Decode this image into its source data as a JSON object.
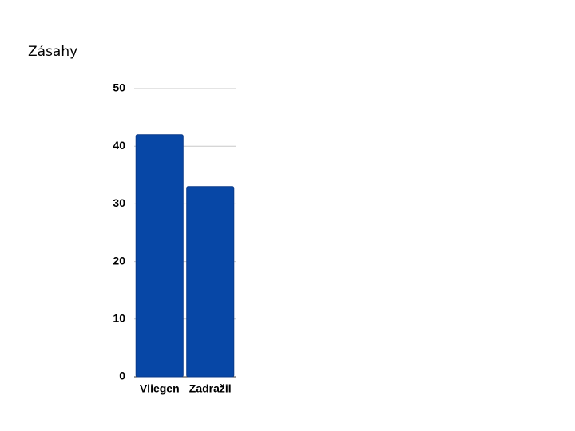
{
  "chart_data": {
    "type": "bar",
    "title": "Zásahy",
    "categories": [
      "Vliegen",
      "Zadražil"
    ],
    "values": [
      42,
      33
    ],
    "color": "#0747a6",
    "ylim": [
      0,
      50
    ],
    "yticks": [
      0,
      10,
      20,
      30,
      40,
      50
    ],
    "grid": true
  }
}
